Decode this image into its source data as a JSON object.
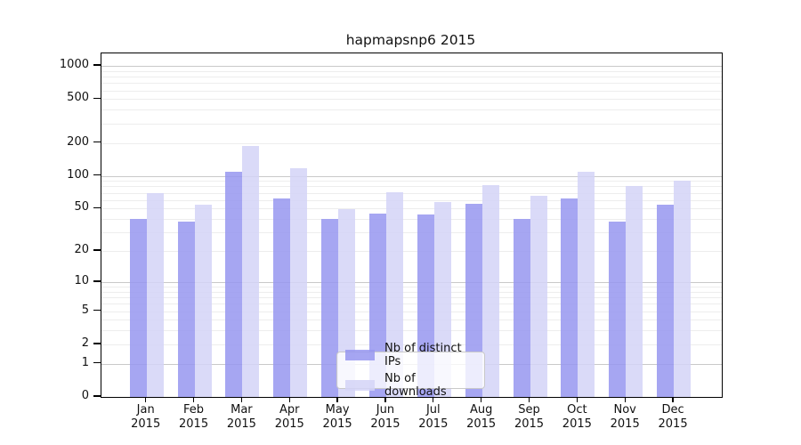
{
  "chart_data": {
    "type": "bar",
    "title": "hapmapsnp6 2015",
    "categories": [
      "Jan",
      "Feb",
      "Mar",
      "Apr",
      "May",
      "Jun",
      "Jul",
      "Aug",
      "Sep",
      "Oct",
      "Nov",
      "Dec"
    ],
    "x_year_line": "2015",
    "series": [
      {
        "name": "Nb of distinct IPs",
        "color": "rgba(150,150,240,0.85)",
        "color_hex": "#a6a6f2",
        "values": [
          40,
          38,
          108,
          62,
          40,
          45,
          44,
          55,
          40,
          62,
          38,
          54
        ]
      },
      {
        "name": "Nb of downloads",
        "color": "rgba(211,211,247,0.85)",
        "color_hex": "#dadaf9",
        "values": [
          70,
          54,
          186,
          117,
          49,
          71,
          58,
          82,
          65,
          110,
          81,
          91
        ]
      }
    ],
    "yticks": [
      0,
      1,
      2,
      5,
      10,
      20,
      50,
      100,
      200,
      500,
      1000
    ],
    "ylim": [
      0,
      1300
    ],
    "yscale": "log1p",
    "grid": true,
    "legend": {
      "position": "lower center"
    }
  }
}
